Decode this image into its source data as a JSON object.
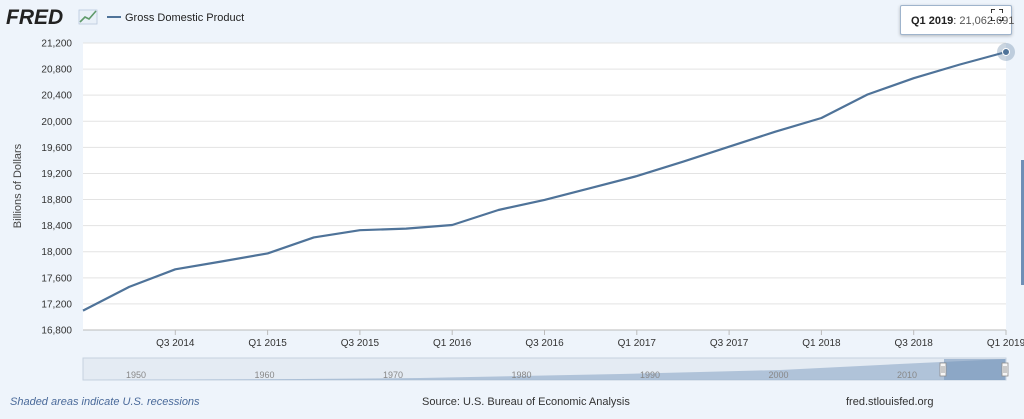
{
  "header": {
    "logo_text": "FRED",
    "legend_label": "Gross Domestic Product",
    "series_color": "#4f7399"
  },
  "tooltip": {
    "label": "Q1 2019",
    "value": "21,062.691"
  },
  "footer": {
    "recessions_note": "Shaded areas indicate U.S. recessions",
    "source": "Source: U.S. Bureau of Economic Analysis",
    "site": "fred.stlouisfed.org"
  },
  "navigator": {
    "year_labels": [
      "1950",
      "1960",
      "1970",
      "1980",
      "1990",
      "2000",
      "2010"
    ]
  },
  "chart_data": {
    "type": "line",
    "title": "Gross Domestic Product",
    "ylabel": "Billions of Dollars",
    "xlabel": "",
    "ylim": [
      16800,
      21200
    ],
    "yticks": [
      16800,
      17200,
      17600,
      18000,
      18400,
      18800,
      19200,
      19600,
      20000,
      20400,
      20800,
      21200
    ],
    "ytick_labels": [
      "16,800",
      "17,200",
      "17,600",
      "18,000",
      "18,400",
      "18,800",
      "19,200",
      "19,600",
      "20,000",
      "20,400",
      "20,800",
      "21,200"
    ],
    "xtick_labels": [
      "Q3 2014",
      "Q1 2015",
      "Q3 2015",
      "Q1 2016",
      "Q3 2016",
      "Q1 2017",
      "Q3 2017",
      "Q1 2018",
      "Q3 2018",
      "Q1 2019"
    ],
    "x": [
      "Q1 2014",
      "Q2 2014",
      "Q3 2014",
      "Q4 2014",
      "Q1 2015",
      "Q2 2015",
      "Q3 2015",
      "Q4 2015",
      "Q1 2016",
      "Q2 2016",
      "Q3 2016",
      "Q4 2016",
      "Q1 2017",
      "Q2 2017",
      "Q3 2017",
      "Q4 2017",
      "Q1 2018",
      "Q2 2018",
      "Q3 2018",
      "Q4 2018",
      "Q1 2019"
    ],
    "series": [
      {
        "name": "Gross Domestic Product",
        "values": [
          17098,
          17460,
          17730,
          17850,
          17975,
          18220,
          18330,
          18355,
          18410,
          18640,
          18795,
          18975,
          19160,
          19380,
          19610,
          19840,
          20050,
          20410,
          20660,
          20870,
          21062.691
        ]
      }
    ],
    "grid": true,
    "legend": "top-left"
  }
}
